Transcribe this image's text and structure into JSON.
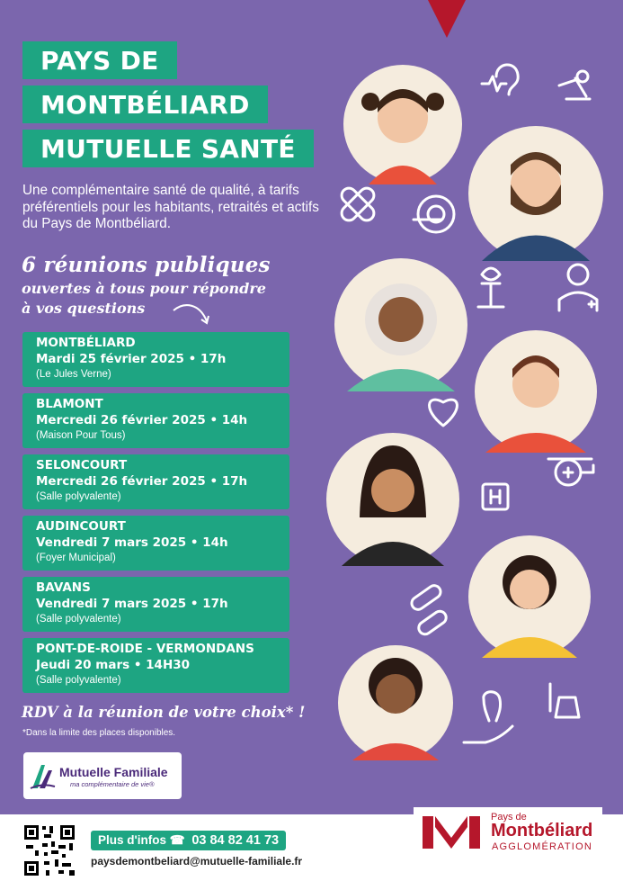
{
  "title": {
    "line1": "PAYS DE",
    "line2": "MONTBÉLIARD",
    "line3": "MUTUELLE SANTÉ"
  },
  "intro": "Une complémentaire santé de qualité, à tarifs préférentiels pour les habitants, retraités et actifs du Pays de Montbéliard.",
  "headline": {
    "line1": "6 réunions publiques",
    "line2": "ouvertes à tous pour répondre",
    "line3": "à vos questions"
  },
  "meetings": [
    {
      "city": "MONTBÉLIARD",
      "when": "Mardi 25 février 2025 • 17h",
      "place": "(Le Jules Verne)"
    },
    {
      "city": "BLAMONT",
      "when": "Mercredi 26 février 2025 • 14h",
      "place": "(Maison Pour Tous)"
    },
    {
      "city": "SELONCOURT",
      "when": "Mercredi 26 février 2025 • 17h",
      "place": "(Salle polyvalente)"
    },
    {
      "city": "AUDINCOURT",
      "when": "Vendredi 7 mars 2025 • 14h",
      "place": "(Foyer Municipal)"
    },
    {
      "city": "BAVANS",
      "when": "Vendredi 7 mars 2025 • 17h",
      "place": "(Salle polyvalente)"
    },
    {
      "city": "PONT-DE-ROIDE - VERMONDANS",
      "when": "Jeudi 20 mars • 14H30",
      "place": "(Salle polyvalente)"
    }
  ],
  "rdv": "RDV à la réunion de votre choix* !",
  "disclaimer": "*Dans la limite des places disponibles.",
  "mutuelle_logo": {
    "name": "Mutuelle Familiale",
    "tagline": "ma complémentaire de vie®"
  },
  "footer": {
    "infos_label": "Plus d'infos",
    "phone": "03 84 82 41 73",
    "email": "paysdemontbeliard@mutuelle-familiale.fr"
  },
  "pm_logo": {
    "pays": "Pays de",
    "name": "Montbéliard",
    "agglo": "AGGLOMÉRATION"
  },
  "colors": {
    "background": "#7b66ad",
    "green": "#1ea582",
    "red": "#b5172b",
    "cream": "#f5ecde"
  },
  "icons": [
    "ear-icon",
    "microscope-icon",
    "bandage-icon",
    "mri-scanner-icon",
    "caduceus-icon",
    "doctor-icon",
    "heart-icon",
    "hospital-icon",
    "helicopter-icon",
    "pills-icon",
    "tooth-icon",
    "test-tube-icon",
    "qr-code-icon"
  ]
}
